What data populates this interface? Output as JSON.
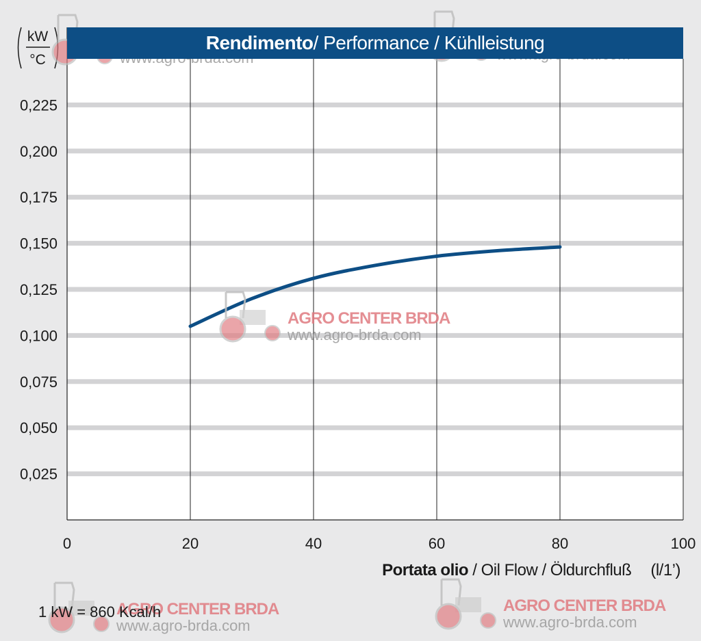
{
  "chart_data": {
    "type": "line",
    "title_bold": "Rendimento",
    "title_rest": " / Performance / Kühlleistung",
    "xlabel_bold": "Portata olio",
    "xlabel_rest": " / Oil Flow / Öldurchfluß",
    "xlabel_unit": "(l/1’)",
    "ylabel_unit_top": "kW",
    "ylabel_unit_bottom": "°C",
    "xlim": [
      0,
      100
    ],
    "ylim": [
      0,
      0.25
    ],
    "x_ticks": [
      0,
      20,
      40,
      60,
      80,
      100
    ],
    "x_tick_labels": [
      "0",
      "20",
      "40",
      "60",
      "80",
      "100"
    ],
    "y_ticks": [
      0.025,
      0.05,
      0.075,
      0.1,
      0.125,
      0.15,
      0.175,
      0.2,
      0.225
    ],
    "y_tick_labels": [
      "0,025",
      "0,050",
      "0,075",
      "0,100",
      "0,125",
      "0,150",
      "0,175",
      "0,200",
      "0,225"
    ],
    "grid": true,
    "series": [
      {
        "color": "#0d4e85",
        "x": [
          20,
          30,
          40,
          50,
          60,
          70,
          80
        ],
        "y": [
          0.105,
          0.12,
          0.131,
          0.138,
          0.143,
          0.146,
          0.148
        ]
      }
    ]
  },
  "footnote": "1 kW = 860 Kcal/h",
  "watermark": {
    "title": "AGRO CENTER BRDA",
    "url": "www.agro-brda.com"
  },
  "colors": {
    "background": "#e9e9ea",
    "title_bar": "#0d4e85",
    "gridline": "#d3d3d5",
    "axis": "#222222",
    "watermark_red": "#e07a80"
  }
}
